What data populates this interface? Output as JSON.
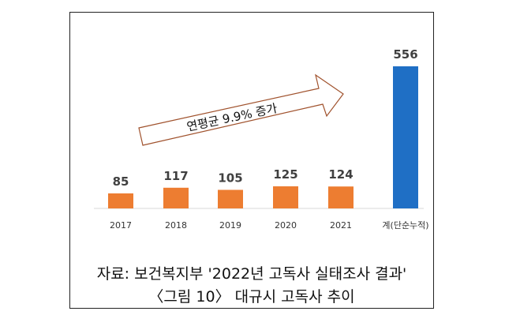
{
  "chart_data": {
    "type": "bar",
    "categories": [
      "2017",
      "2018",
      "2019",
      "2020",
      "2021",
      "계(단순누적)"
    ],
    "values": [
      85,
      117,
      105,
      125,
      124,
      556
    ],
    "ylim": [
      0,
      556
    ],
    "grid": false,
    "legend": "none",
    "annotation": "연평균 9.9% 증가",
    "colors": {
      "annual": "#ED7D31",
      "cumulative": "#1F6FC5",
      "label": "#404040",
      "arrow_stroke": "#A0522D",
      "axis": "#D9D9D9"
    }
  },
  "source": "자료: 보건복지부 '2022년 고독사 실태조사 결과'",
  "figure_title": "〈그림 10〉 대규시 고독사 추이"
}
